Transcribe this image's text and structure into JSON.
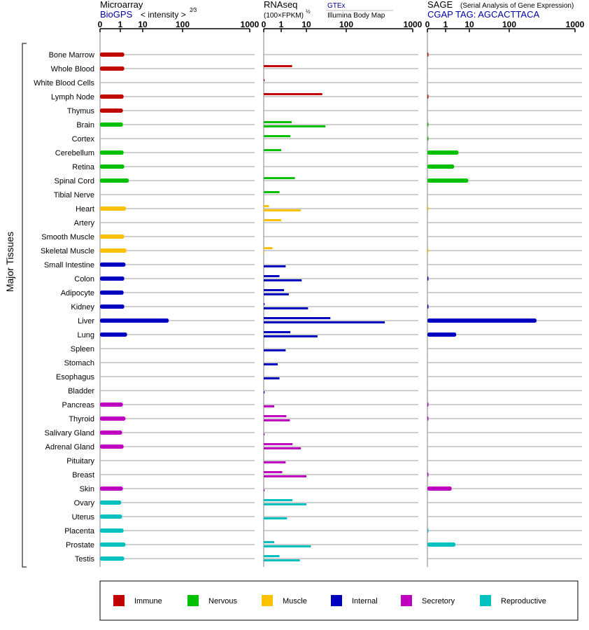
{
  "panels": [
    {
      "title": "Microarray",
      "subtitle": "BioGPS",
      "unit_label": "< intensity >",
      "unit_exponent": "2⁄3",
      "link_label": "",
      "link_sub": "",
      "ticks": [
        "0",
        "1",
        "10",
        "100",
        "1000"
      ]
    },
    {
      "title": "RNAseq",
      "subtitle": "",
      "unit_label": "(100×FPKM)",
      "unit_exponent": "½",
      "link_label": "GTEx",
      "link_sub": "Illumina Body Map",
      "ticks": [
        "0",
        "1",
        "10",
        "100",
        "1000"
      ]
    },
    {
      "title": "SAGE",
      "subtitle": "CGAP TAG: AGCACTTACA",
      "unit_label": "(Serial Analysis of Gene Expression)",
      "unit_exponent": "",
      "link_label": "",
      "link_sub": "",
      "ticks": [
        "0",
        "1",
        "10",
        "100",
        "1000"
      ]
    }
  ],
  "group_label": "Major Tissues",
  "legend": [
    {
      "name": "Immune",
      "color": "#c00000"
    },
    {
      "name": "Nervous",
      "color": "#00c000"
    },
    {
      "name": "Muscle",
      "color": "#ffc000"
    },
    {
      "name": "Internal",
      "color": "#0000c0"
    },
    {
      "name": "Secretory",
      "color": "#c000c0"
    },
    {
      "name": "Reproductive",
      "color": "#00c0c0"
    }
  ],
  "chart_data": {
    "type": "bar",
    "orientation": "horizontal",
    "scale": "log-like (0,1,10,100,1000)",
    "categories": [
      "Bone Marrow",
      "Whole Blood",
      "White Blood Cells",
      "Lymph Node",
      "Thymus",
      "Brain",
      "Cortex",
      "Cerebellum",
      "Retina",
      "Spinal Cord",
      "Tibial Nerve",
      "Heart",
      "Artery",
      "Smooth Muscle",
      "Skeletal Muscle",
      "Small Intestine",
      "Colon",
      "Adipocyte",
      "Kidney",
      "Liver",
      "Lung",
      "Spleen",
      "Stomach",
      "Esophagus",
      "Bladder",
      "Pancreas",
      "Thyroid",
      "Salivary Gland",
      "Adrenal Gland",
      "Pituitary",
      "Breast",
      "Skin",
      "Ovary",
      "Uterus",
      "Placenta",
      "Prostate",
      "Testis"
    ],
    "category_system": [
      "Immune",
      "Immune",
      "Immune",
      "Immune",
      "Immune",
      "Nervous",
      "Nervous",
      "Nervous",
      "Nervous",
      "Nervous",
      "Nervous",
      "Muscle",
      "Muscle",
      "Muscle",
      "Muscle",
      "Internal",
      "Internal",
      "Internal",
      "Internal",
      "Internal",
      "Internal",
      "Internal",
      "Internal",
      "Internal",
      "Internal",
      "Secretory",
      "Secretory",
      "Secretory",
      "Secretory",
      "Secretory",
      "Secretory",
      "Secretory",
      "Reproductive",
      "Reproductive",
      "Reproductive",
      "Reproductive",
      "Reproductive"
    ],
    "series": [
      {
        "name": "Microarray",
        "values": [
          1.5,
          1.5,
          null,
          1.4,
          1.3,
          1.3,
          null,
          1.4,
          1.5,
          2.4,
          null,
          1.8,
          null,
          1.5,
          1.9,
          1.7,
          1.5,
          1.4,
          1.5,
          45,
          2.0,
          null,
          null,
          null,
          null,
          1.3,
          1.7,
          1.2,
          1.4,
          null,
          null,
          1.3,
          1.1,
          1.2,
          1.4,
          1.7,
          1.5
        ]
      },
      {
        "name": "GTEx",
        "values": [
          null,
          2.7,
          0.05,
          25,
          null,
          2.6,
          2.3,
          1.0,
          null,
          3.5,
          0.9,
          0.3,
          1.0,
          null,
          0.5,
          null,
          0.9,
          1.3,
          0.05,
          40,
          2.3,
          null,
          null,
          null,
          null,
          null,
          1.6,
          null,
          2.8,
          null,
          1.1,
          null,
          2.8,
          null,
          null,
          0.6,
          0.9
        ]
      },
      {
        "name": "Illumina Body Map",
        "values": [
          null,
          null,
          null,
          null,
          null,
          30,
          null,
          null,
          null,
          null,
          null,
          6.0,
          null,
          null,
          0.01,
          1.5,
          6.5,
          2.0,
          11,
          380,
          19,
          1.5,
          0.8,
          0.9,
          0.05,
          0.6,
          2.2,
          0.05,
          6.0,
          1.5,
          10,
          0.05,
          10,
          1.7,
          null,
          13,
          5.5
        ]
      },
      {
        "name": "SAGE",
        "values": [
          0.02,
          null,
          null,
          0.02,
          null,
          0.01,
          0.01,
          3.5,
          2.3,
          9,
          null,
          0.01,
          null,
          null,
          0.01,
          null,
          0.02,
          null,
          0.02,
          260,
          2.8,
          null,
          null,
          null,
          null,
          0.02,
          0.02,
          null,
          null,
          null,
          0.02,
          1.8,
          null,
          null,
          0.01,
          2.6,
          null
        ]
      }
    ],
    "legend_position": "bottom"
  }
}
